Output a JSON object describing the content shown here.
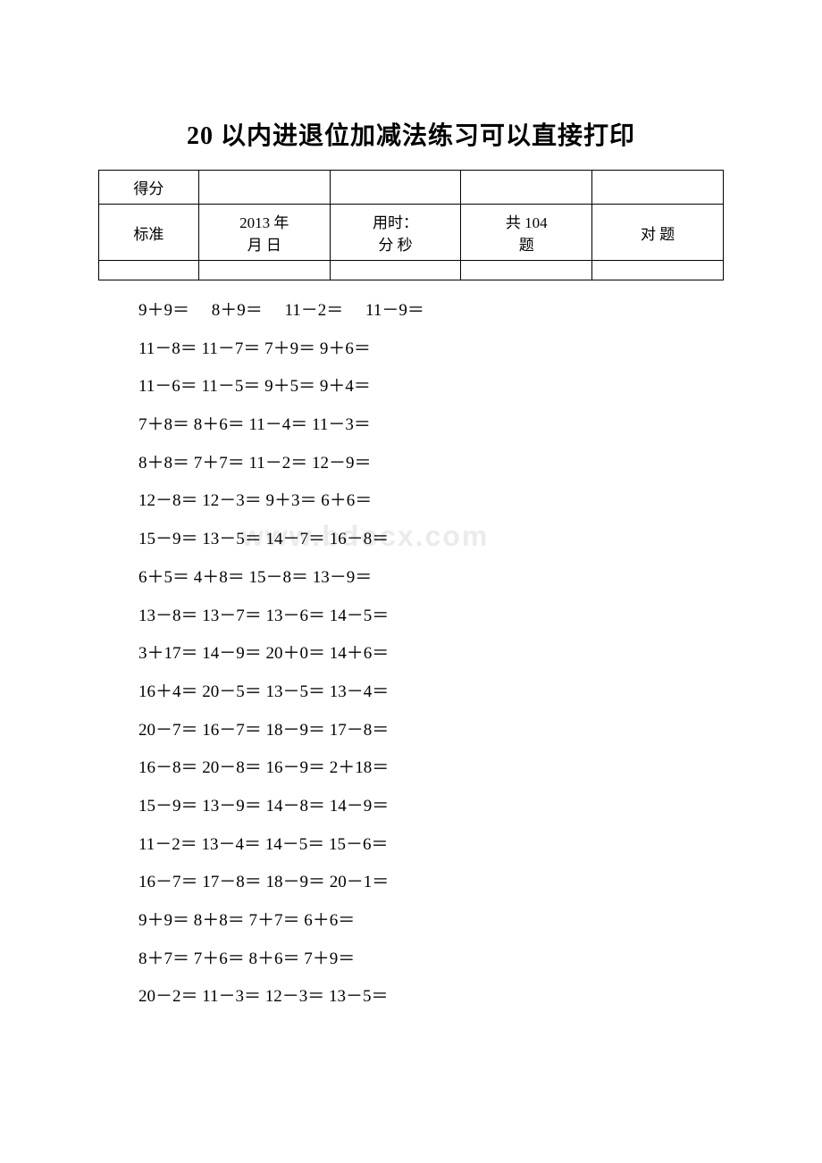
{
  "title": "20 以内进退位加减法练习可以直接打印",
  "header": {
    "score_label": "得分",
    "standard_label": "标准",
    "date": "2013 年\n月 日",
    "time_label": "用时：\n分 秒",
    "total": "共 104\n题",
    "correct_label": "对 题"
  },
  "watermark": "www.bdocx.com",
  "rows": [
    {
      "cells": [
        "9＋9＝",
        "8＋9＝",
        "11－2＝",
        "11－9＝"
      ],
      "spaced": true
    },
    {
      "cells": [
        "11－8＝ 11－7＝ 7＋9＝ 9＋6＝"
      ]
    },
    {
      "cells": [
        "11－6＝ 11－5＝ 9＋5＝ 9＋4＝"
      ]
    },
    {
      "cells": [
        "7＋8＝ 8＋6＝ 11－4＝ 11－3＝"
      ]
    },
    {
      "cells": [
        "8＋8＝ 7＋7＝ 11－2＝ 12－9＝"
      ]
    },
    {
      "cells": [
        "12－8＝ 12－3＝ 9＋3＝ 6＋6＝"
      ]
    },
    {
      "cells": [
        "15－9＝ 13－5＝ 14－7＝ 16－8＝"
      ]
    },
    {
      "cells": [
        "6＋5＝ 4＋8＝ 15－8＝ 13－9＝"
      ]
    },
    {
      "cells": [
        "13－8＝ 13－7＝ 13－6＝ 14－5＝"
      ]
    },
    {
      "cells": [
        "3＋17＝ 14－9＝ 20＋0＝ 14＋6＝"
      ]
    },
    {
      "cells": [
        "16＋4＝ 20－5＝ 13－5＝ 13－4＝"
      ]
    },
    {
      "cells": [
        "20－7＝ 16－7＝ 18－9＝ 17－8＝"
      ]
    },
    {
      "cells": [
        "16－8＝ 20－8＝ 16－9＝ 2＋18＝"
      ]
    },
    {
      "cells": [
        "15－9＝ 13－9＝ 14－8＝ 14－9＝"
      ]
    },
    {
      "cells": [
        "11－2＝ 13－4＝   14－5＝ 15－6＝"
      ]
    },
    {
      "cells": [
        "16－7＝ 17－8＝ 18－9＝ 20－1＝"
      ]
    },
    {
      "cells": [
        "9＋9＝ 8＋8＝ 7＋7＝ 6＋6＝"
      ]
    },
    {
      "cells": [
        "8＋7＝ 7＋6＝ 8＋6＝ 7＋9＝"
      ]
    },
    {
      "cells": [
        "20－2＝ 11－3＝ 12－3＝ 13－5＝"
      ]
    }
  ]
}
